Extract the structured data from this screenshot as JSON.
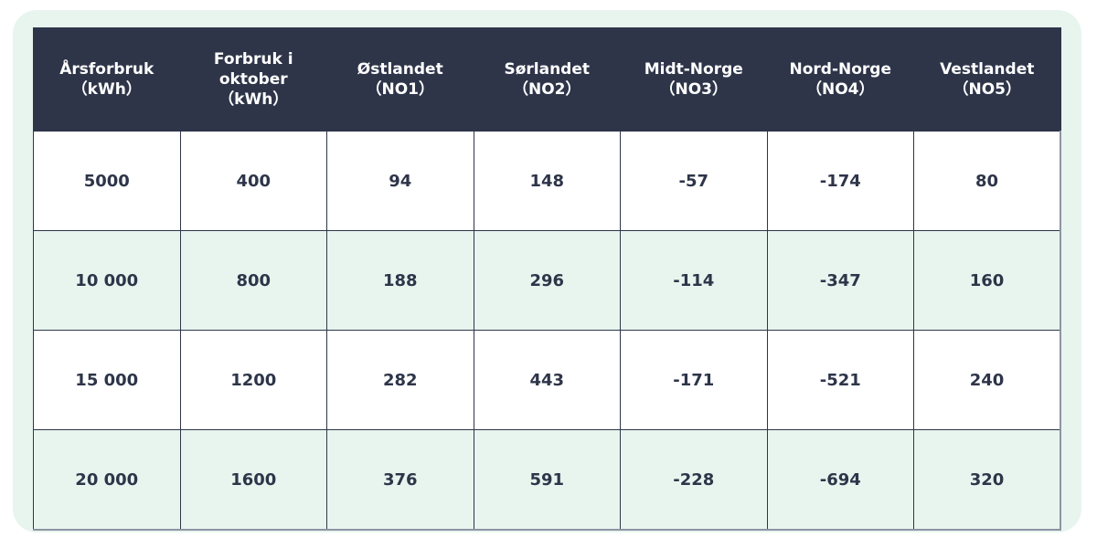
{
  "table": {
    "headers": [
      {
        "line1": "Årsforbruk",
        "line2": "（kWh）",
        "line3": ""
      },
      {
        "line1": "Forbruk i",
        "line2": "oktober",
        "line3": "（kWh）"
      },
      {
        "line1": "Østlandet",
        "line2": "（NO1）",
        "line3": ""
      },
      {
        "line1": "Sørlandet",
        "line2": "（NO2）",
        "line3": ""
      },
      {
        "line1": "Midt-Norge",
        "line2": "（NO3）",
        "line3": ""
      },
      {
        "line1": "Nord-Norge",
        "line2": "（NO4）",
        "line3": ""
      },
      {
        "line1": "Vestlandet",
        "line2": "（NO5）",
        "line3": ""
      }
    ],
    "rows": [
      [
        "5000",
        "400",
        "94",
        "148",
        "-57",
        "-174",
        "80"
      ],
      [
        "10 000",
        "800",
        "188",
        "296",
        "-114",
        "-347",
        "160"
      ],
      [
        "15 000",
        "1200",
        "282",
        "443",
        "-171",
        "-521",
        "240"
      ],
      [
        "20 000",
        "1600",
        "376",
        "591",
        "-228",
        "-694",
        "320"
      ]
    ]
  },
  "colors": {
    "header_bg": "#2e3549",
    "stripe": "#e8f5ef",
    "text": "#2e3549"
  }
}
